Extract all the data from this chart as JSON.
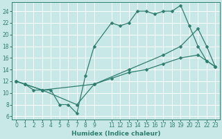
{
  "xlabel": "Humidex (Indice chaleur)",
  "bg_color": "#c8e8e8",
  "line_color": "#2e7d6e",
  "xlim": [
    -0.5,
    23.5
  ],
  "ylim": [
    5.5,
    25.5
  ],
  "yticks": [
    6,
    8,
    10,
    12,
    14,
    16,
    18,
    20,
    22,
    24
  ],
  "xticks": [
    0,
    1,
    2,
    3,
    4,
    5,
    6,
    7,
    8,
    9,
    11,
    12,
    13,
    14,
    15,
    16,
    17,
    18,
    19,
    20,
    21,
    22,
    23
  ],
  "line1_x": [
    0,
    1,
    2,
    3,
    4,
    5,
    6,
    7,
    8,
    9,
    11,
    12,
    13,
    14,
    15,
    16,
    17,
    18,
    19,
    20,
    21,
    22,
    23
  ],
  "line1_y": [
    12,
    11.5,
    10.5,
    10.5,
    10.5,
    8,
    8,
    6.5,
    13,
    18,
    22,
    21.5,
    22,
    24,
    24,
    23.5,
    24,
    24,
    25,
    21.5,
    18,
    15.5,
    14.5
  ],
  "line2_x": [
    0,
    1,
    3,
    9,
    13,
    17,
    19,
    21,
    22,
    23
  ],
  "line2_y": [
    12,
    11.5,
    10.5,
    11.5,
    14,
    16.5,
    18,
    21,
    18,
    14.5
  ],
  "line3_x": [
    0,
    1,
    3,
    7,
    9,
    11,
    13,
    15,
    17,
    19,
    21,
    22,
    23
  ],
  "line3_y": [
    12,
    11.5,
    10.5,
    8,
    11.5,
    12.5,
    13.5,
    14,
    15,
    16,
    16.5,
    15.5,
    14.5
  ]
}
